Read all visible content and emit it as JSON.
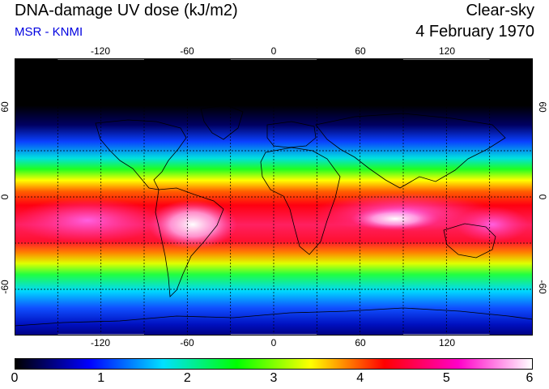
{
  "header": {
    "title": "DNA-damage UV dose (kJ/m2)",
    "subtitle": "MSR - KNMI",
    "sky_condition": "Clear-sky",
    "date": "4 February 1970"
  },
  "map": {
    "longitude_ticks": [
      "-120",
      "-60",
      "0",
      "60",
      "120"
    ],
    "latitude_ticks": [
      "60",
      "0",
      "-60"
    ],
    "longitude_values": [
      -120,
      -60,
      0,
      60,
      120
    ],
    "latitude_values": [
      60,
      0,
      -60
    ],
    "projection": "equirectangular",
    "lon_range": [
      -180,
      180
    ],
    "lat_range": [
      -90,
      90
    ],
    "grid": "dashed every 30 degrees"
  },
  "legend": {
    "labels": [
      "0",
      "1",
      "2",
      "3",
      "4",
      "5",
      "6"
    ],
    "values": [
      0,
      1,
      2,
      3,
      4,
      5,
      6
    ],
    "colors": [
      "#000000",
      "#0000ff",
      "#00e0ff",
      "#00ff00",
      "#ffff00",
      "#ff0000",
      "#ff00c8",
      "#ffffff"
    ]
  },
  "colors": {
    "subtitle_color": "#0000e0",
    "coastline": "#000000",
    "grid": "#000000"
  }
}
